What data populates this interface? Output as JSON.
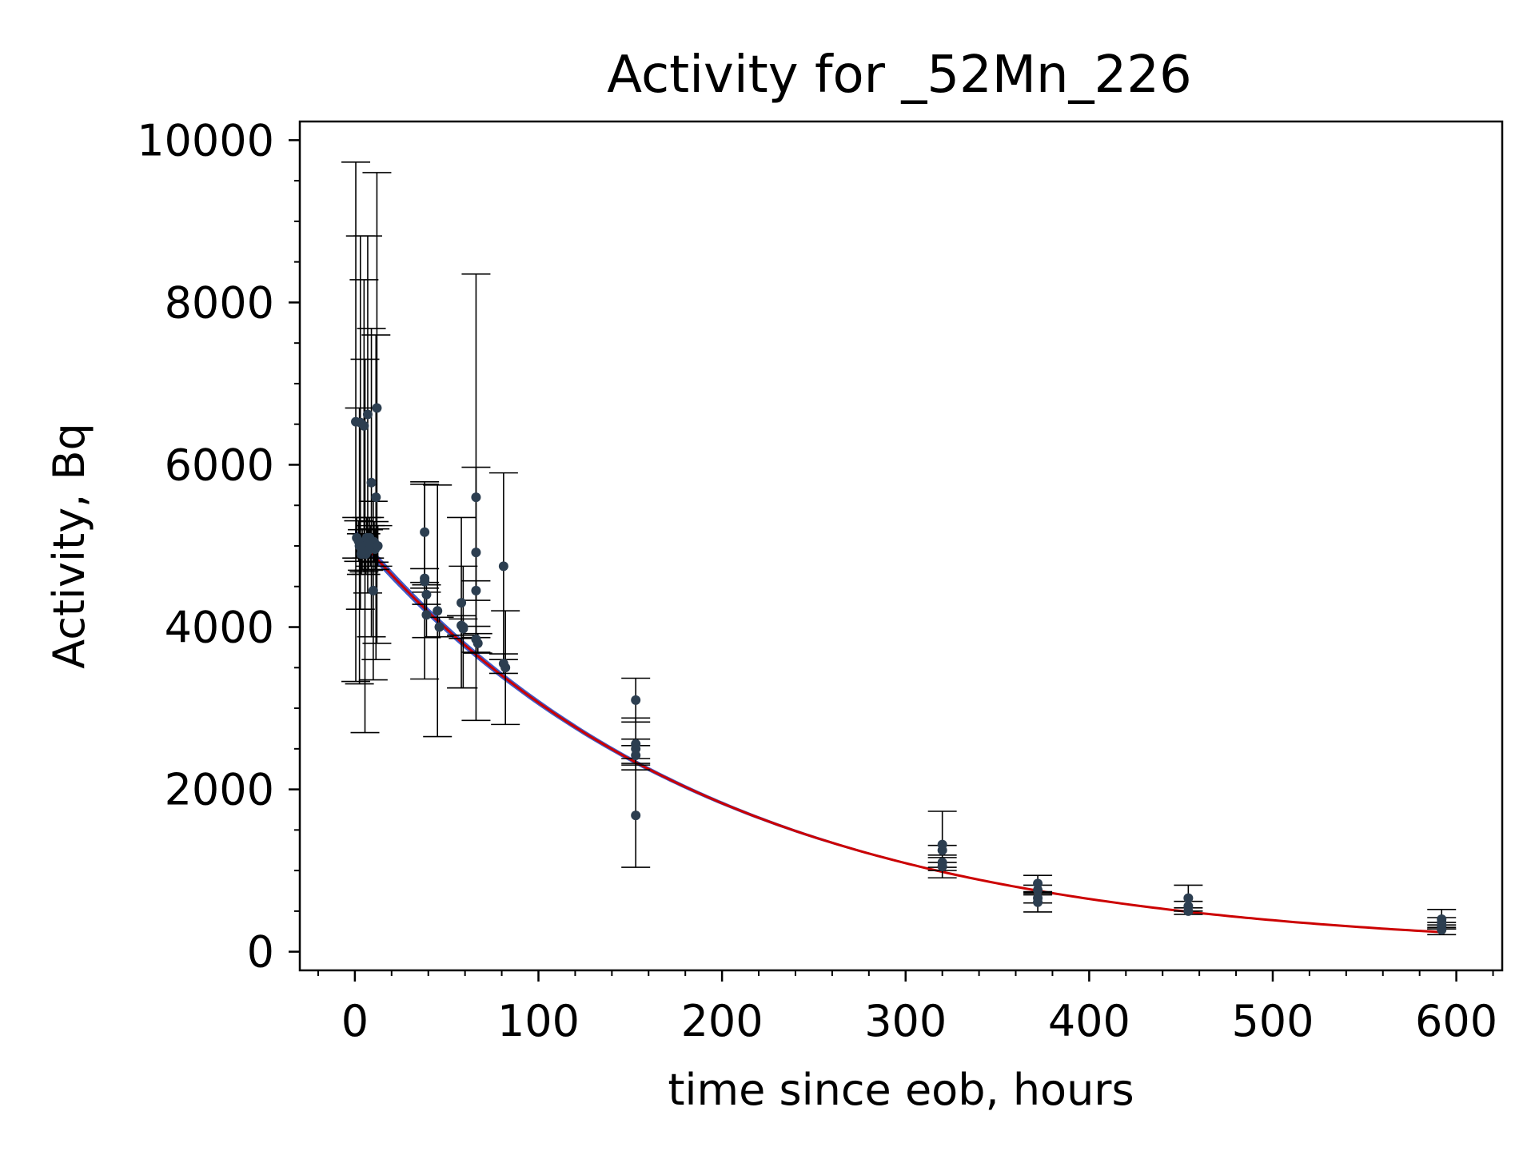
{
  "chart_data": {
    "type": "scatter",
    "title": "Activity for _52Mn_226",
    "xlabel": "time since eob, hours",
    "ylabel": "Activity, Bq",
    "xlim": [
      -30,
      625
    ],
    "ylim": [
      -230,
      10230
    ],
    "xticks": [
      0,
      100,
      200,
      300,
      400,
      500,
      600
    ],
    "yticks": [
      0,
      2000,
      4000,
      6000,
      8000,
      10000
    ],
    "xtick_labels": [
      "0",
      "100",
      "200",
      "300",
      "400",
      "500",
      "600"
    ],
    "ytick_labels": [
      "0",
      "2000",
      "4000",
      "6000",
      "8000",
      "10000"
    ],
    "grid": false,
    "legend": null,
    "colors": {
      "points": "#2c3e50",
      "errorbars": "#000000",
      "fit_band": "#1f3fbf",
      "fit_line": "#cc0000"
    },
    "fit": {
      "model": "exponential decay",
      "A0": 5150,
      "half_life_hours": 134,
      "x_range": [
        0,
        592
      ],
      "band_fraction": 0.012
    },
    "series": [
      {
        "x": [
          0.5,
          2,
          3,
          4,
          5,
          6,
          7,
          8,
          9,
          10,
          11,
          12,
          1,
          2.5,
          3.5,
          5.5,
          6.5,
          7.5,
          8.5,
          10.5,
          11.5,
          12.5
        ],
        "y": [
          6530,
          5060,
          6520,
          4950,
          6480,
          4900,
          6620,
          5100,
          5780,
          4450,
          4960,
          6700,
          5100,
          5000,
          4900,
          5000,
          5100,
          4950,
          5000,
          5050,
          5600,
          5000
        ],
        "yerr": [
          3200,
          250,
          2300,
          250,
          1800,
          250,
          2200,
          250,
          1900,
          1100,
          250,
          2900,
          250,
          1700,
          250,
          2300,
          250,
          250,
          250,
          250,
          2000,
          250
        ]
      },
      {
        "x": [
          38,
          38,
          38,
          39,
          39,
          45,
          46,
          58,
          58,
          59,
          59,
          66,
          66,
          66,
          66,
          67,
          81,
          81,
          82
        ],
        "y": [
          5170,
          4600,
          4560,
          4400,
          4150,
          4200,
          4000,
          4300,
          4020,
          4000,
          3980,
          5600,
          4920,
          4450,
          3850,
          3800,
          4750,
          3550,
          3500
        ],
        "yerr": [
          620,
          120,
          1200,
          120,
          280,
          1550,
          120,
          1050,
          120,
          750,
          120,
          2750,
          1050,
          120,
          160,
          120,
          1150,
          120,
          700
        ]
      },
      {
        "x": [
          153,
          153,
          153,
          153,
          153
        ],
        "y": [
          3100,
          2560,
          2500,
          2420,
          1680
        ],
        "yerr": [
          270,
          320,
          120,
          120,
          640
        ]
      },
      {
        "x": [
          320,
          320,
          320,
          320
        ],
        "y": [
          1320,
          1250,
          1100,
          1050
        ],
        "yerr": [
          410,
          60,
          60,
          50
        ]
      },
      {
        "x": [
          372,
          372,
          372,
          372
        ],
        "y": [
          840,
          760,
          660,
          610
        ],
        "yerr": [
          100,
          60,
          60,
          120
        ]
      },
      {
        "x": [
          454,
          454,
          454
        ],
        "y": [
          660,
          560,
          500
        ],
        "yerr": [
          160,
          60,
          40
        ]
      },
      {
        "x": [
          592,
          592,
          592,
          592
        ],
        "y": [
          400,
          360,
          320,
          270
        ],
        "yerr": [
          120,
          60,
          40,
          60
        ]
      }
    ]
  }
}
